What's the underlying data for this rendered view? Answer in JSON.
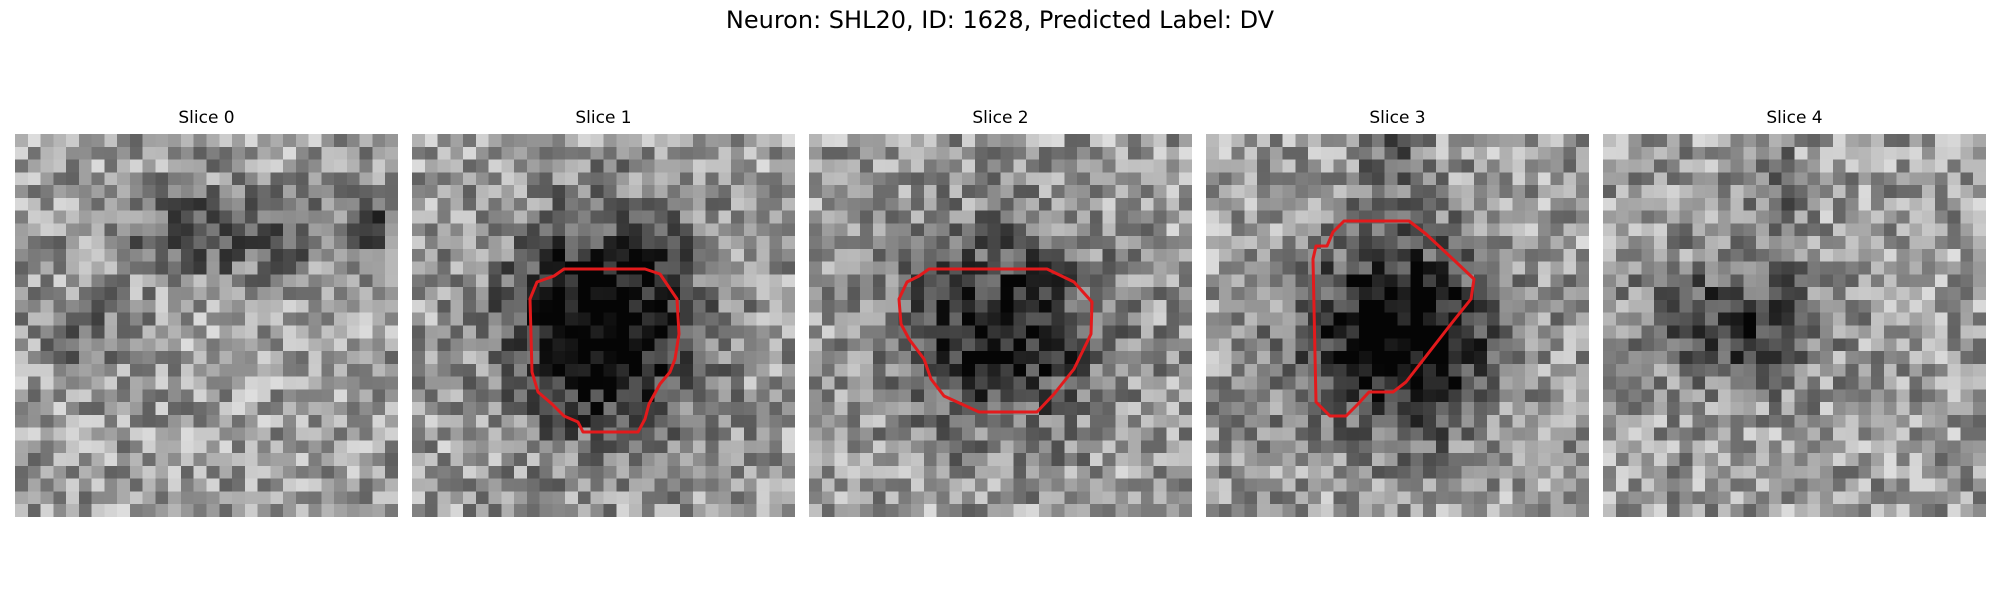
{
  "figure": {
    "title": "Neuron: SHL20, ID: 1628, Predicted Label: DV"
  },
  "contour_color": "#e31a1c",
  "slices": [
    {
      "title": "Slice 0",
      "has_contour": false
    },
    {
      "title": "Slice 1",
      "has_contour": true
    },
    {
      "title": "Slice 2",
      "has_contour": true
    },
    {
      "title": "Slice 3",
      "has_contour": true
    },
    {
      "title": "Slice 4",
      "has_contour": false
    }
  ]
}
